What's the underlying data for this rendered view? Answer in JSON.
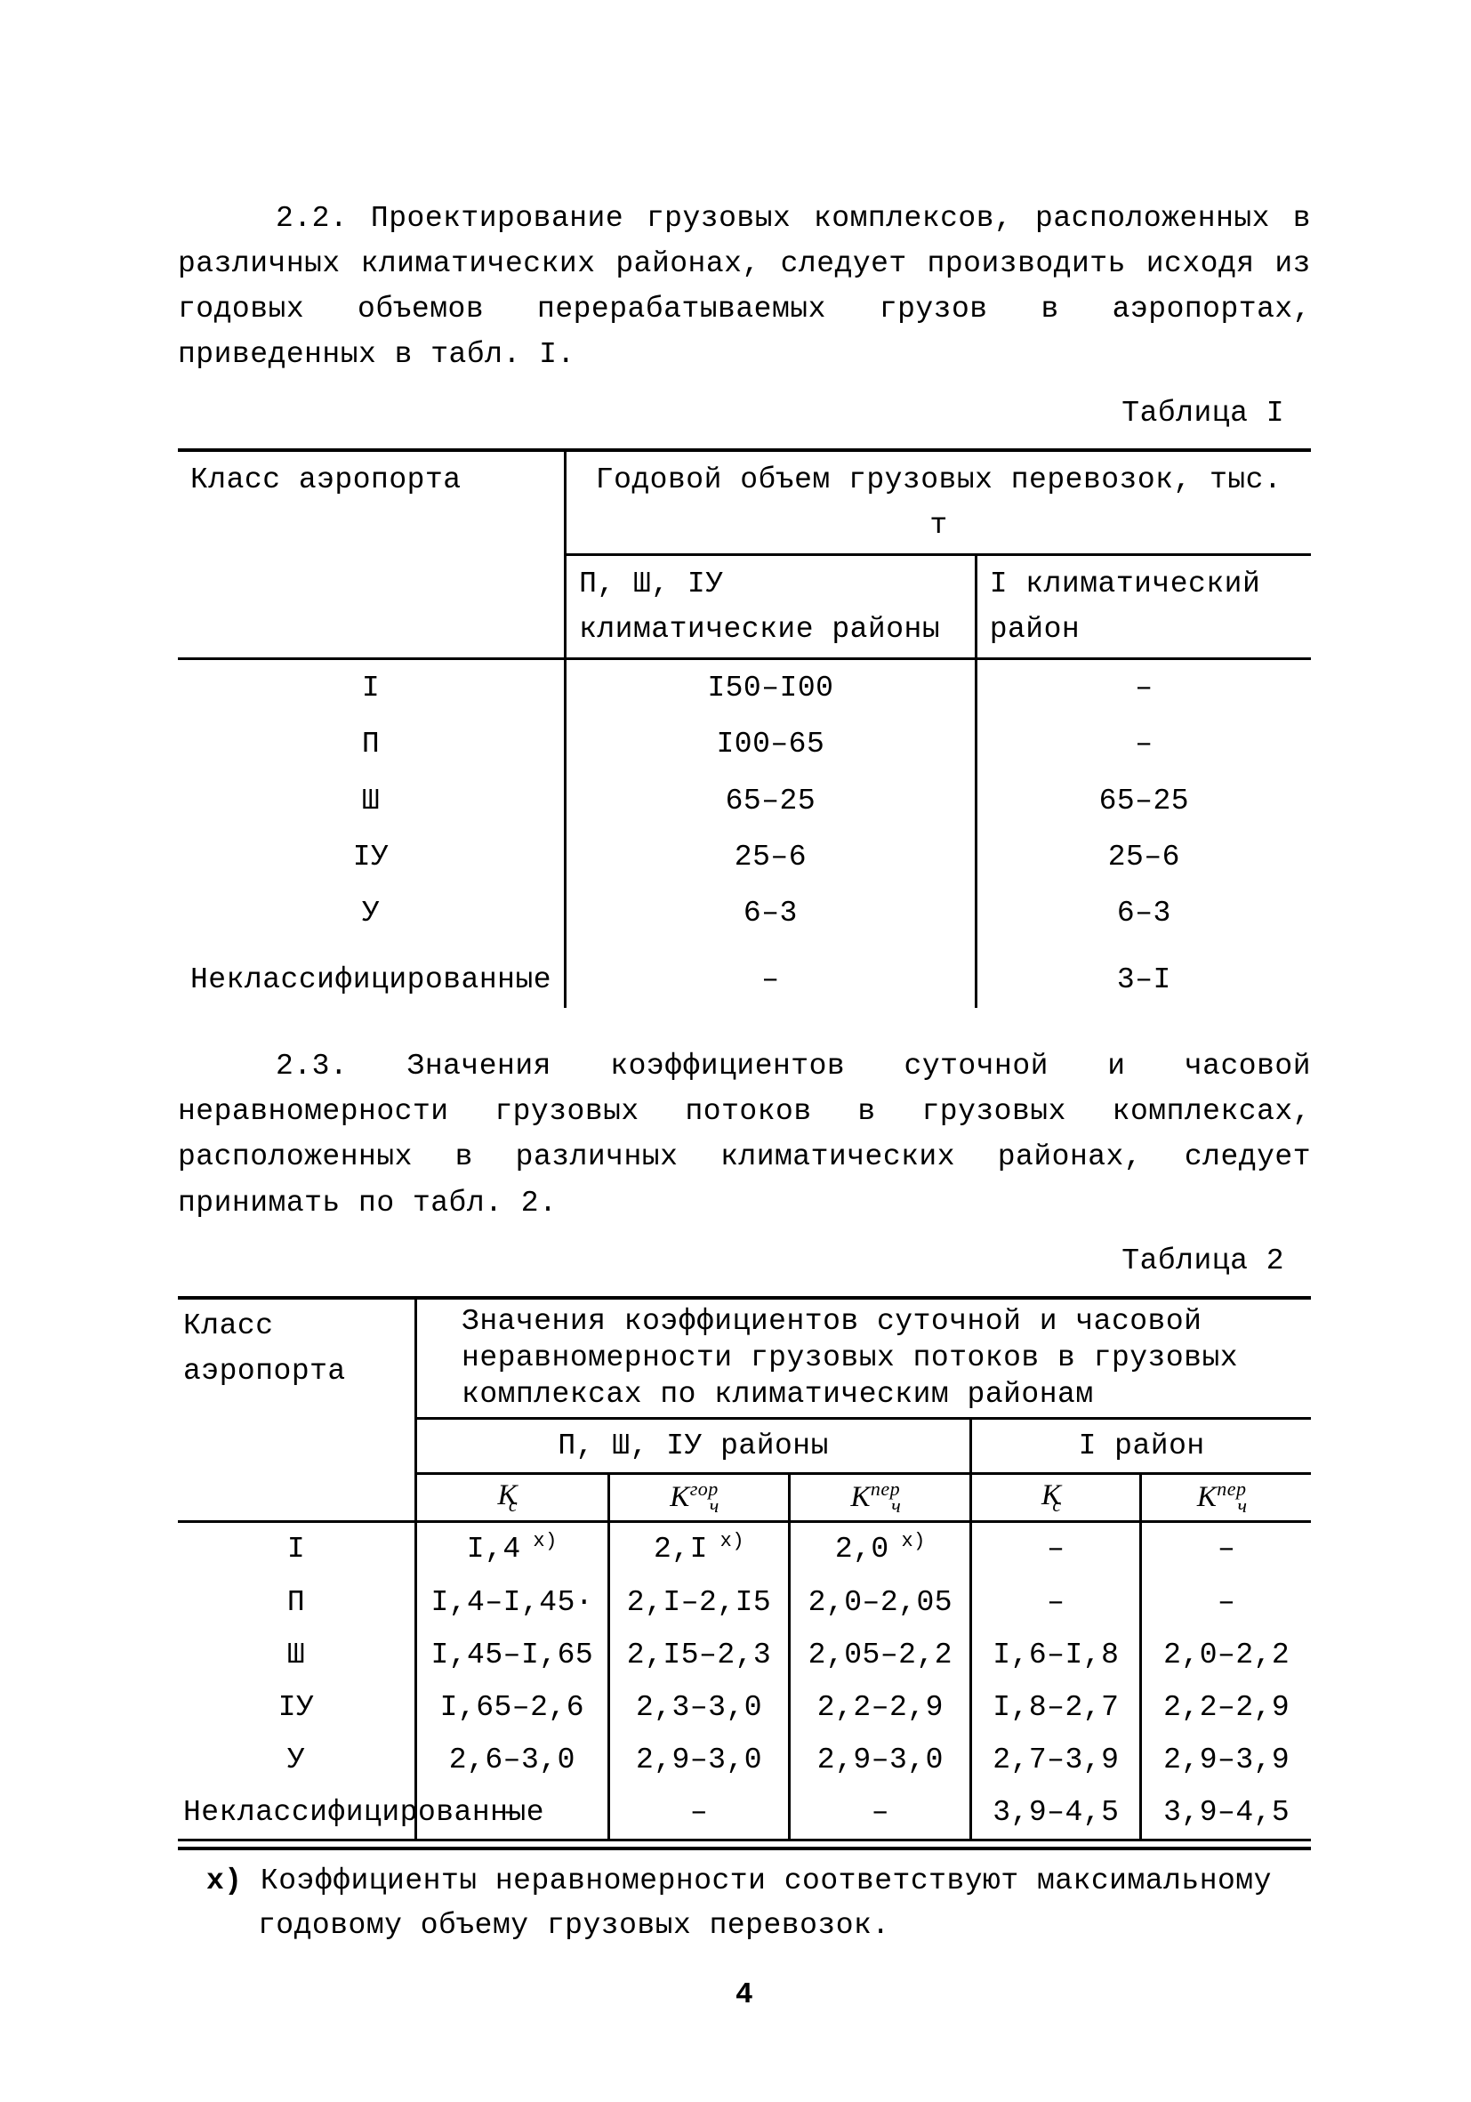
{
  "page_number": "4",
  "para22": "2.2. Проектирование грузовых комплексов, расположенных в различных климатических районах, следует производить исходя из годовых объемов перерабатываемых грузов в аэропортах, приведенных в табл. I.",
  "table1_label": "Таблица I",
  "table1": {
    "col_left": "Класс аэропорта",
    "col_super": "Годовой объем грузовых перевозок, тыс. т",
    "col_sub_a": "П, Ш, IУ климатические районы",
    "col_sub_b": "I климатический район",
    "rows": [
      {
        "label": "I",
        "a": "I50–I00",
        "b": "–"
      },
      {
        "label": "П",
        "a": "I00–65",
        "b": "–"
      },
      {
        "label": "Ш",
        "a": "65–25",
        "b": "65–25"
      },
      {
        "label": "IУ",
        "a": "25–6",
        "b": "25–6"
      },
      {
        "label": "У",
        "a": "6–3",
        "b": "6–3"
      },
      {
        "label": "Неклассифицированные",
        "a": "–",
        "b": "3–I"
      }
    ]
  },
  "para23": "2.3. Значения коэффициентов суточной и часовой неравномерности грузовых потоков в грузовых комплексах, расположенных в различных климатических районах, следует принимать по табл. 2.",
  "table2_label": "Таблица 2",
  "table2": {
    "col_left": "Класс аэропорта",
    "col_super": "Значения коэффициентов суточной и часовой неравномерности грузовых потоков в грузовых комплексах по климатическим районам",
    "group_a": "П, Ш, IУ районы",
    "group_b": "I район",
    "sym_kc": "К",
    "sym_kc_sub": "с",
    "sym_k4": "К",
    "sym_k4_sub": "ч",
    "sym_gor": "гор",
    "sym_per": "пер",
    "rows": [
      {
        "label": "I",
        "kc": "I,4",
        "kc_x": true,
        "k4g": "2,I",
        "k4g_x": true,
        "k4p": "2,0",
        "k4p_x": true,
        "kc2": "–",
        "k4p2": "–"
      },
      {
        "label": "П",
        "kc": "I,4–I,45·",
        "kc_x": false,
        "k4g": "2,I–2,I5",
        "k4g_x": false,
        "k4p": "2,0–2,05",
        "k4p_x": false,
        "kc2": "–",
        "k4p2": "–"
      },
      {
        "label": "Ш",
        "kc": "I,45–I,65",
        "kc_x": false,
        "k4g": "2,I5–2,3",
        "k4g_x": false,
        "k4p": "2,05–2,2",
        "k4p_x": false,
        "kc2": "I,6–I,8",
        "k4p2": "2,0–2,2"
      },
      {
        "label": "IУ",
        "kc": "I,65–2,6",
        "kc_x": false,
        "k4g": "2,3–3,0",
        "k4g_x": false,
        "k4p": "2,2–2,9",
        "k4p_x": false,
        "kc2": "I,8–2,7",
        "k4p2": "2,2–2,9"
      },
      {
        "label": "У",
        "kc": "2,6–3,0",
        "kc_x": false,
        "k4g": "2,9–3,0",
        "k4g_x": false,
        "k4p": "2,9–3,0",
        "k4p_x": false,
        "kc2": "2,7–3,9",
        "k4p2": "2,9–3,9"
      },
      {
        "label": "Неклассифицированные",
        "kc": "–",
        "kc_x": false,
        "k4g": "–",
        "k4g_x": false,
        "k4p": "–",
        "k4p_x": false,
        "kc2": "3,9–4,5",
        "k4p2": "3,9–4,5"
      }
    ]
  },
  "footnote_marker": "х)",
  "footnote": "Коэффициенты неравномерности соответствуют максимальному годовому объему грузовых перевозок."
}
